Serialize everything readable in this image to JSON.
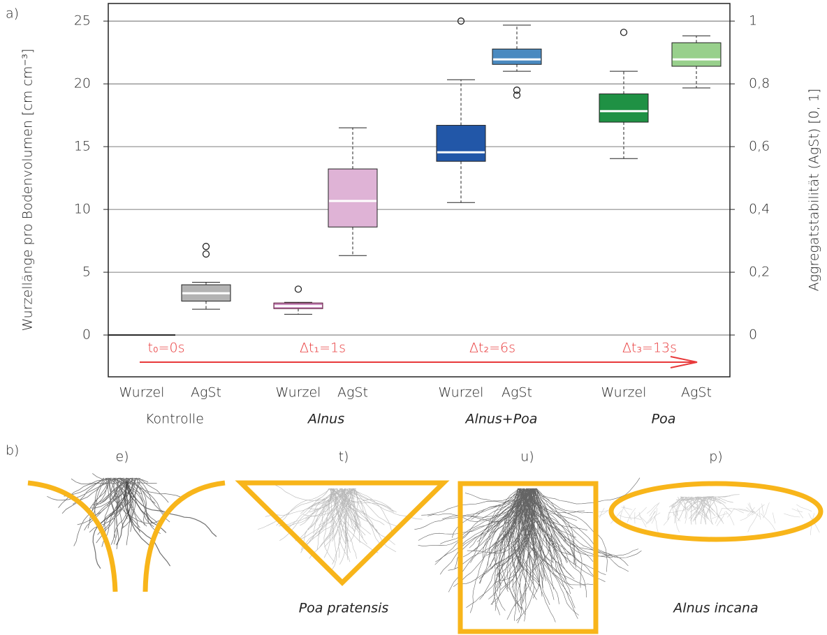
{
  "panel_a_label": "a)",
  "chart_data": {
    "type": "box",
    "ylabel": "Wurzellänge pro Bodenvolumen [cm cm⁻³]",
    "y2label": "Aggregatstabilität (AgSt) [0, 1]",
    "categories": [
      "Wurzel",
      "AgSt",
      "Wurzel",
      "AgSt",
      "Wurzel",
      "AgSt",
      "Wurzel",
      "AgSt"
    ],
    "groups": [
      {
        "label": "Kontrolle",
        "italic": false
      },
      {
        "label": "Alnus",
        "italic": true
      },
      {
        "label": "Alnus+Poa",
        "italic": true
      },
      {
        "label": "Poa",
        "italic": true
      }
    ],
    "boxes": [
      {
        "whislo": 0,
        "q1": 0,
        "med": 0,
        "q3": 0,
        "whishi": 0,
        "fliers": [],
        "color": "#222222"
      },
      {
        "whislo": 0.082,
        "q1": 0.108,
        "med": 0.133,
        "q3": 0.16,
        "whishi": 0.168,
        "fliers": [
          0.282,
          0.258
        ],
        "color": "#b3b3b3",
        "axis": "y2"
      },
      {
        "whislo": 1.65,
        "q1": 2.1,
        "med": 2.3,
        "q3": 2.55,
        "whishi": 2.6,
        "fliers": [
          3.65
        ],
        "color": "#c98bbd"
      },
      {
        "whislo": 0.253,
        "q1": 0.344,
        "med": 0.427,
        "q3": 0.529,
        "whishi": 0.66,
        "fliers": [],
        "color": "#dfb3d6",
        "axis": "y2"
      },
      {
        "whislo": 10.55,
        "q1": 13.83,
        "med": 14.55,
        "q3": 16.7,
        "whishi": 20.33,
        "fliers": [
          25
        ],
        "color": "#2257a8"
      },
      {
        "whislo": 0.84,
        "q1": 0.862,
        "med": 0.878,
        "q3": 0.911,
        "whishi": 0.987,
        "fliers": [
          0.78,
          0.764
        ],
        "color": "#4a8ac0",
        "axis": "y2"
      },
      {
        "whislo": 14.05,
        "q1": 16.95,
        "med": 17.83,
        "q3": 19.2,
        "whishi": 21,
        "fliers": [
          24.1
        ],
        "color": "#1f9144"
      },
      {
        "whislo": 0.787,
        "q1": 0.856,
        "med": 0.878,
        "q3": 0.931,
        "whishi": 0.953,
        "fliers": [],
        "color": "#98d08c",
        "axis": "y2"
      }
    ],
    "ylim": [
      -3.33,
      26.4
    ],
    "yticks": [
      0,
      5,
      10,
      15,
      20,
      25
    ],
    "y2lim": [
      -0.1332,
      1.056
    ],
    "y2ticks": [
      0,
      {
        "value": 0.2,
        "label": "0,2"
      },
      {
        "value": 0.4,
        "label": "0,4"
      },
      {
        "value": 0.6,
        "label": "0,6"
      },
      {
        "value": 0.8,
        "label": "0,8"
      },
      1
    ],
    "grid": true,
    "arrow_color": "#e8393a",
    "annotations": [
      "t₀=0s",
      "Δt₁=1s",
      "Δt₂=6s",
      "Δt₃=13s"
    ]
  },
  "panel_b": {
    "label": "b)",
    "images": [
      {
        "label": "e)"
      },
      {
        "label": "t)",
        "caption": "Poa pratensis"
      },
      {
        "label": "u)"
      },
      {
        "label": "p)",
        "caption": "Alnus incana"
      }
    ]
  }
}
